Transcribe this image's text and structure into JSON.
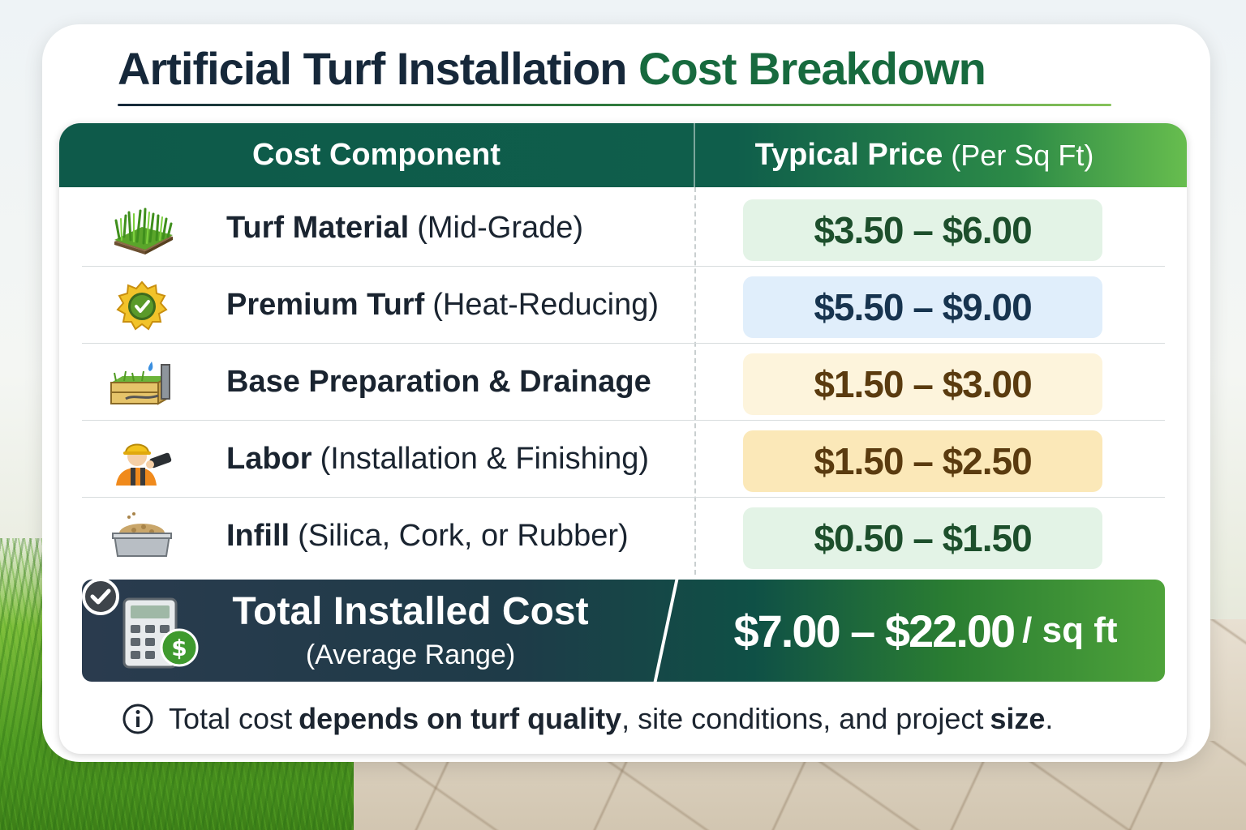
{
  "title": {
    "main": "Artificial Turf Installation",
    "accent": "Cost Breakdown"
  },
  "table": {
    "header": {
      "component": "Cost Component",
      "price_bold": "Typical Price",
      "price_light": "(Per Sq Ft)"
    },
    "rows": [
      {
        "name": "Turf Material",
        "detail": "(Mid-Grade)",
        "price": "$3.50 – $6.00",
        "icon": "turf-icon",
        "pill_bg": "#e3f3e6",
        "pill_fg": "#1d4f2c"
      },
      {
        "name": "Premium Turf",
        "detail": "(Heat-Reducing)",
        "price": "$5.50 – $9.00",
        "icon": "premium-badge-icon",
        "pill_bg": "#e0eefb",
        "pill_fg": "#17344f"
      },
      {
        "name": "Base Preparation & Drainage",
        "detail": "",
        "price": "$1.50 – $3.00",
        "icon": "drainage-icon",
        "pill_bg": "#fdf4dc",
        "pill_fg": "#5a3b0f"
      },
      {
        "name": "Labor",
        "detail": "(Installation & Finishing)",
        "price": "$1.50 – $2.50",
        "icon": "worker-icon",
        "pill_bg": "#fbe8b8",
        "pill_fg": "#5a3b0f"
      },
      {
        "name": "Infill",
        "detail": "(Silica, Cork, or Rubber)",
        "price": "$0.50 – $1.50",
        "icon": "infill-tray-icon",
        "pill_bg": "#e3f3e6",
        "pill_fg": "#1d4f2c"
      }
    ],
    "total": {
      "label": "Total Installed Cost",
      "sublabel": "(Average Range)",
      "value": "$7.00 – $22.00",
      "unit": "/ sq ft"
    }
  },
  "note": {
    "pre": "Total cost",
    "bold1": "depends on turf quality",
    "mid": ", site conditions, and project",
    "bold2": "size",
    "post": "."
  }
}
